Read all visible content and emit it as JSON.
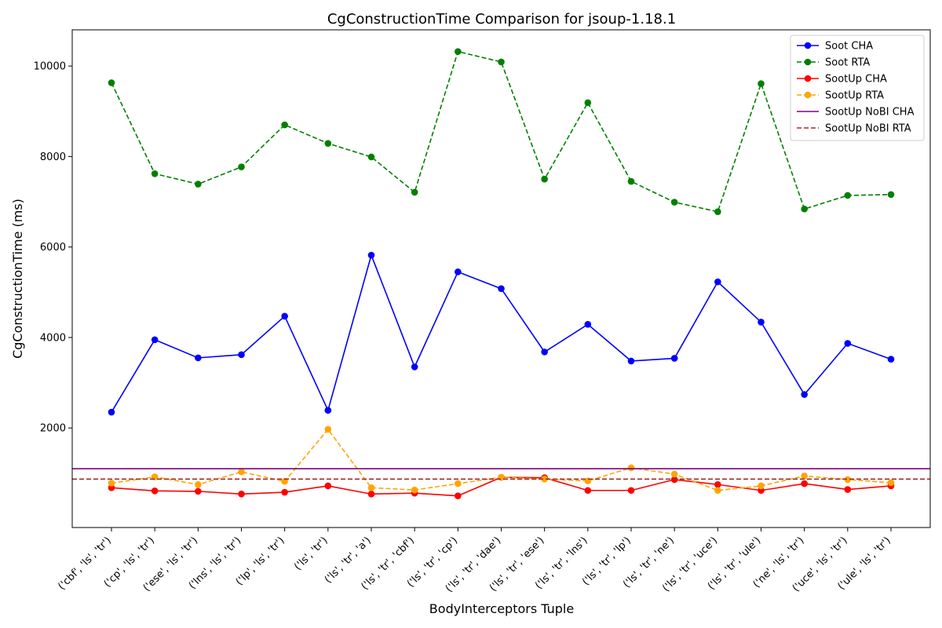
{
  "chart_data": {
    "type": "line",
    "title": "CgConstructionTime Comparison for jsoup-1.18.1",
    "xlabel": "BodyInterceptors Tuple",
    "ylabel": "CgConstructionTime (ms)",
    "ylim": [
      -200,
      10800
    ],
    "yticks": [
      2000,
      4000,
      6000,
      8000,
      10000
    ],
    "legend_position": "top-right",
    "categories": [
      "('cbf', 'ls', 'tr')",
      "('cp', 'ls', 'tr')",
      "('ese', 'ls', 'tr')",
      "('lns', 'ls', 'tr')",
      "('lp', 'ls', 'tr')",
      "('ls', 'tr')",
      "('ls', 'tr', 'a')",
      "('ls', 'tr', 'cbf')",
      "('ls', 'tr', 'cp')",
      "('ls', 'tr', 'dae')",
      "('ls', 'tr', 'ese')",
      "('ls', 'tr', 'lns')",
      "('ls', 'tr', 'lp')",
      "('ls', 'tr', 'ne')",
      "('ls', 'tr', 'uce')",
      "('ls', 'tr', 'ule')",
      "('ne', 'ls', 'tr')",
      "('uce', 'ls', 'tr')",
      "('ule', 'ls', 'tr')"
    ],
    "series": [
      {
        "name": "Soot CHA",
        "color": "#0000ff",
        "style": "solid",
        "marker": true,
        "values": [
          2350,
          3950,
          3550,
          3620,
          4470,
          2390,
          5820,
          3350,
          5450,
          5080,
          3680,
          4290,
          3480,
          3540,
          5230,
          4340,
          2740,
          3870,
          3520
        ]
      },
      {
        "name": "Soot RTA",
        "color": "#008000",
        "style": "dashed",
        "marker": true,
        "values": [
          9630,
          7620,
          7390,
          7770,
          8700,
          8290,
          7990,
          7210,
          10320,
          10090,
          7500,
          9190,
          7450,
          6990,
          6780,
          9610,
          6840,
          7140,
          7160
        ]
      },
      {
        "name": "SootUp CHA",
        "color": "#ff0000",
        "style": "solid",
        "marker": true,
        "values": [
          680,
          610,
          600,
          540,
          580,
          720,
          540,
          560,
          500,
          910,
          900,
          620,
          620,
          860,
          750,
          620,
          770,
          640,
          720
        ]
      },
      {
        "name": "SootUp RTA",
        "color": "#ffa500",
        "style": "dashed",
        "marker": true,
        "values": [
          780,
          920,
          750,
          1030,
          820,
          1970,
          680,
          630,
          770,
          910,
          870,
          830,
          1120,
          980,
          620,
          720,
          940,
          860,
          790
        ]
      },
      {
        "name": "SootUp NoBI CHA",
        "color": "#800080",
        "style": "solid",
        "marker": false,
        "hline": 1100
      },
      {
        "name": "SootUp NoBI RTA",
        "color": "#a52a2a",
        "style": "dashed",
        "marker": false,
        "hline": 870
      }
    ]
  }
}
